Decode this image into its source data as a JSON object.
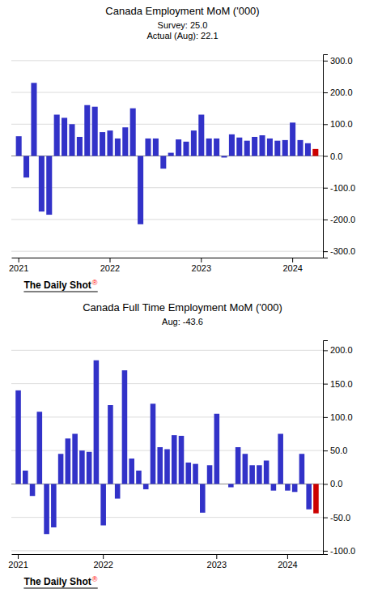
{
  "chart_data": [
    {
      "type": "bar",
      "title": "Canada Employment MoM ('000)",
      "subtitle": "Survey:  25.0\nActual (Aug):  22.1",
      "categories": [
        "2021",
        null,
        null,
        null,
        null,
        null,
        null,
        null,
        null,
        null,
        null,
        null,
        "2022",
        null,
        null,
        null,
        null,
        null,
        null,
        null,
        null,
        null,
        null,
        null,
        "2023",
        null,
        null,
        null,
        null,
        null,
        null,
        null,
        null,
        null,
        null,
        null,
        "2024",
        null,
        null,
        null
      ],
      "values": [
        62,
        -68,
        230,
        -175,
        -185,
        130,
        120,
        100,
        60,
        160,
        155,
        75,
        80,
        55,
        90,
        150,
        -215,
        55,
        55,
        -40,
        10,
        52,
        45,
        80,
        130,
        55,
        55,
        -5,
        68,
        58,
        48,
        60,
        65,
        55,
        48,
        50,
        105,
        50,
        40,
        22
      ],
      "colors": [
        "#3232c8",
        "#3232c8",
        "#3232c8",
        "#3232c8",
        "#3232c8",
        "#3232c8",
        "#3232c8",
        "#3232c8",
        "#3232c8",
        "#3232c8",
        "#3232c8",
        "#3232c8",
        "#3232c8",
        "#3232c8",
        "#3232c8",
        "#3232c8",
        "#3232c8",
        "#3232c8",
        "#3232c8",
        "#3232c8",
        "#3232c8",
        "#3232c8",
        "#3232c8",
        "#3232c8",
        "#3232c8",
        "#3232c8",
        "#3232c8",
        "#3232c8",
        "#3232c8",
        "#3232c8",
        "#3232c8",
        "#3232c8",
        "#3232c8",
        "#3232c8",
        "#3232c8",
        "#3232c8",
        "#3232c8",
        "#3232c8",
        "#3232c8",
        "#cc0000"
      ],
      "ylim": [
        -320,
        320
      ],
      "yticks": [
        {
          "value": -300,
          "label": "-300.0"
        },
        {
          "value": -200,
          "label": "-200.0"
        },
        {
          "value": -100,
          "label": "-100.0"
        },
        {
          "value": 0,
          "label": "0.0"
        },
        {
          "value": 100,
          "label": "100.0"
        },
        {
          "value": 200,
          "label": "200.0"
        },
        {
          "value": 300,
          "label": "300.0"
        }
      ],
      "grid": true,
      "annotations": [
        "The Daily Shot",
        "®"
      ]
    },
    {
      "type": "bar",
      "title": "Canada Full Time Employment MoM ('000)",
      "subtitle": "Aug:   -43.6",
      "categories": [
        "2021",
        null,
        null,
        null,
        null,
        null,
        null,
        null,
        null,
        null,
        null,
        null,
        "2022",
        null,
        null,
        null,
        null,
        null,
        null,
        null,
        null,
        null,
        null,
        null,
        null,
        null,
        null,
        null,
        "2023",
        null,
        null,
        null,
        null,
        null,
        null,
        null,
        null,
        null,
        "2024",
        null,
        null,
        null,
        null
      ],
      "values": [
        140,
        20,
        -18,
        108,
        -75,
        -65,
        45,
        68,
        75,
        50,
        48,
        185,
        -62,
        118,
        -22,
        170,
        38,
        20,
        -8,
        120,
        55,
        52,
        73,
        72,
        32,
        30,
        -43,
        28,
        105,
        0,
        -5,
        55,
        45,
        28,
        28,
        35,
        -10,
        75,
        -10,
        -12,
        45,
        -38,
        -44
      ],
      "colors": [
        "#3232c8",
        "#3232c8",
        "#3232c8",
        "#3232c8",
        "#3232c8",
        "#3232c8",
        "#3232c8",
        "#3232c8",
        "#3232c8",
        "#3232c8",
        "#3232c8",
        "#3232c8",
        "#3232c8",
        "#3232c8",
        "#3232c8",
        "#3232c8",
        "#3232c8",
        "#3232c8",
        "#3232c8",
        "#3232c8",
        "#3232c8",
        "#3232c8",
        "#3232c8",
        "#3232c8",
        "#3232c8",
        "#3232c8",
        "#3232c8",
        "#3232c8",
        "#3232c8",
        "#3232c8",
        "#3232c8",
        "#3232c8",
        "#3232c8",
        "#3232c8",
        "#3232c8",
        "#3232c8",
        "#3232c8",
        "#3232c8",
        "#3232c8",
        "#3232c8",
        "#3232c8",
        "#3232c8",
        "#cc0000"
      ],
      "ylim": [
        -105,
        215
      ],
      "yticks": [
        {
          "value": -100,
          "label": "-100.0"
        },
        {
          "value": -50,
          "label": "-50.0"
        },
        {
          "value": 0,
          "label": "0.0"
        },
        {
          "value": 50,
          "label": "50.0"
        },
        {
          "value": 100,
          "label": "100.0"
        },
        {
          "value": 150,
          "label": "150.0"
        },
        {
          "value": 200,
          "label": "200.0"
        }
      ],
      "grid": true,
      "annotations": [
        "The Daily Shot",
        "®"
      ]
    }
  ]
}
